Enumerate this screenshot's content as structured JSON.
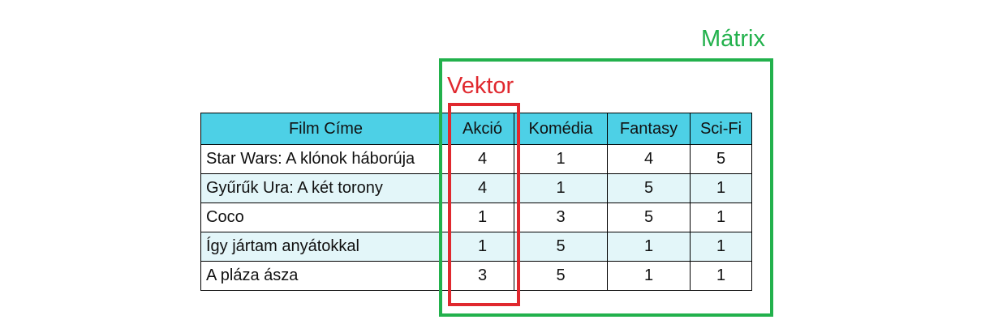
{
  "table": {
    "headers": [
      "Film Címe",
      "Akció",
      "Komédia",
      "Fantasy",
      "Sci-Fi"
    ],
    "rows": [
      {
        "title": "Star Wars: A klónok háborúja",
        "values": [
          "4",
          "1",
          "4",
          "5"
        ]
      },
      {
        "title": "Gyűrűk Ura: A két torony",
        "values": [
          "4",
          "1",
          "5",
          "1"
        ]
      },
      {
        "title": "Coco",
        "values": [
          "1",
          "3",
          "5",
          "1"
        ]
      },
      {
        "title": "Így jártam anyátokkal",
        "values": [
          "1",
          "5",
          "1",
          "1"
        ]
      },
      {
        "title": "A pláza ásza",
        "values": [
          "3",
          "5",
          "1",
          "1"
        ]
      }
    ]
  },
  "annotations": {
    "matrix_label": "Mátrix",
    "vector_label": "Vektor",
    "matrix_color": "#22b14c",
    "vector_color": "#e0282e"
  },
  "colors": {
    "header_bg": "#4dd0e6",
    "alt_row_bg": "#e3f6f9"
  }
}
